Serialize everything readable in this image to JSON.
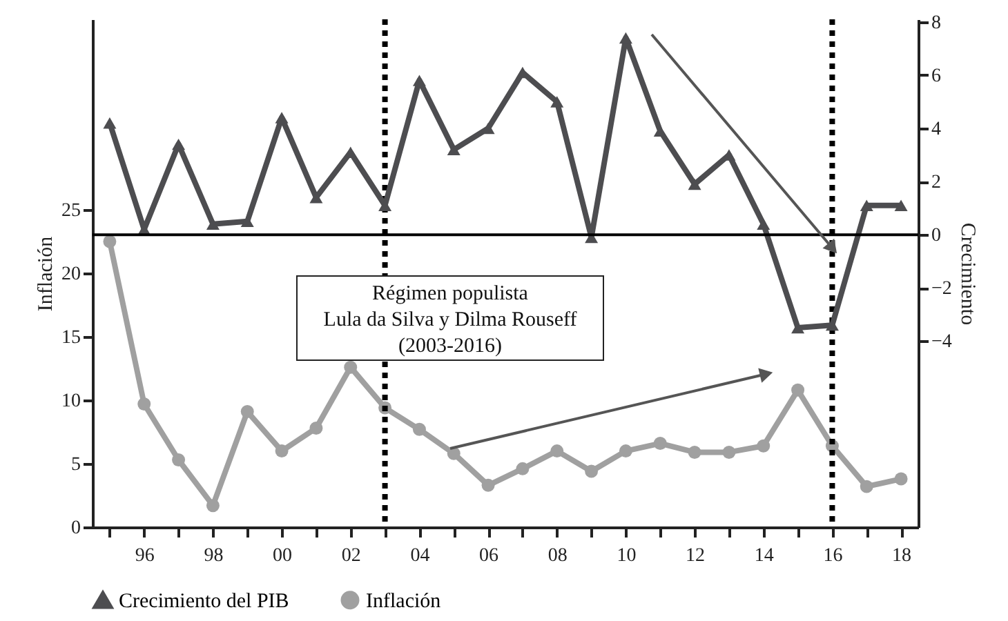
{
  "chart_data": {
    "type": "line",
    "xlabel": null,
    "ylabel": "Inflación",
    "y2label": "Crecimiento",
    "x": [
      1995,
      1996,
      1997,
      1998,
      1999,
      2000,
      2001,
      2002,
      2003,
      2004,
      2005,
      2006,
      2007,
      2008,
      2009,
      2010,
      2011,
      2012,
      2013,
      2014,
      2015,
      2016,
      2017,
      2018
    ],
    "series": [
      {
        "name": "Crecimiento del PIB",
        "color": "#4d4d50",
        "axis": "y2",
        "marker": "triangle",
        "values": [
          4.2,
          0.2,
          3.4,
          0.4,
          0.5,
          4.4,
          1.4,
          3.1,
          1.1,
          5.8,
          3.2,
          4.0,
          6.1,
          5.0,
          -0.1,
          7.4,
          3.9,
          1.9,
          3.0,
          0.4,
          -3.5,
          -3.4,
          1.1,
          1.1
        ]
      },
      {
        "name": "Inflación",
        "color": "#a0a0a0",
        "marker": "circle",
        "values": [
          22.5,
          9.7,
          5.3,
          1.7,
          9.1,
          6.0,
          7.8,
          12.6,
          9.4,
          7.7,
          5.8,
          3.3,
          4.6,
          6.0,
          4.4,
          6.0,
          6.6,
          5.9,
          5.9,
          6.4,
          10.8,
          6.4,
          3.2,
          3.8
        ]
      }
    ],
    "xlim": [
      1994.5,
      2018.5
    ],
    "xticks": [
      {
        "value": 1995,
        "label": null
      },
      {
        "value": 1996,
        "label": "96"
      },
      {
        "value": 1997,
        "label": null
      },
      {
        "value": 1998,
        "label": "98"
      },
      {
        "value": 1999,
        "label": null
      },
      {
        "value": 2000,
        "label": "00"
      },
      {
        "value": 2001,
        "label": null
      },
      {
        "value": 2002,
        "label": "02"
      },
      {
        "value": 2003,
        "label": null
      },
      {
        "value": 2004,
        "label": "04"
      },
      {
        "value": 2005,
        "label": null
      },
      {
        "value": 2006,
        "label": "06"
      },
      {
        "value": 2007,
        "label": null
      },
      {
        "value": 2008,
        "label": "08"
      },
      {
        "value": 2009,
        "label": null
      },
      {
        "value": 2010,
        "label": "10"
      },
      {
        "value": 2011,
        "label": null
      },
      {
        "value": 2012,
        "label": "12"
      },
      {
        "value": 2013,
        "label": null
      },
      {
        "value": 2014,
        "label": "14"
      },
      {
        "value": 2015,
        "label": null
      },
      {
        "value": 2016,
        "label": "16"
      },
      {
        "value": 2017,
        "label": null
      },
      {
        "value": 2018,
        "label": "18"
      }
    ],
    "ylim": [
      0,
      40
    ],
    "yticks": [
      0,
      5,
      10,
      15,
      20,
      25
    ],
    "y2lim": [
      -11,
      8.1
    ],
    "y2ticks": [
      -4,
      -2,
      0,
      2,
      4,
      6,
      8
    ],
    "ref_lines": [
      {
        "axis": "y2",
        "value": 0,
        "color": "#000000",
        "line_style": "solid"
      },
      {
        "axis": "x",
        "value": 2003,
        "color": "#000000",
        "line_style": "dotted"
      },
      {
        "axis": "x",
        "value": 2016,
        "color": "#000000",
        "line_style": "dotted"
      }
    ],
    "annotations": [
      "Régimen populista\nLula da Silva y Dilma Rouseff\n(2003-2016)"
    ],
    "legend": "bottom",
    "grid": false,
    "line_style": "solid"
  }
}
